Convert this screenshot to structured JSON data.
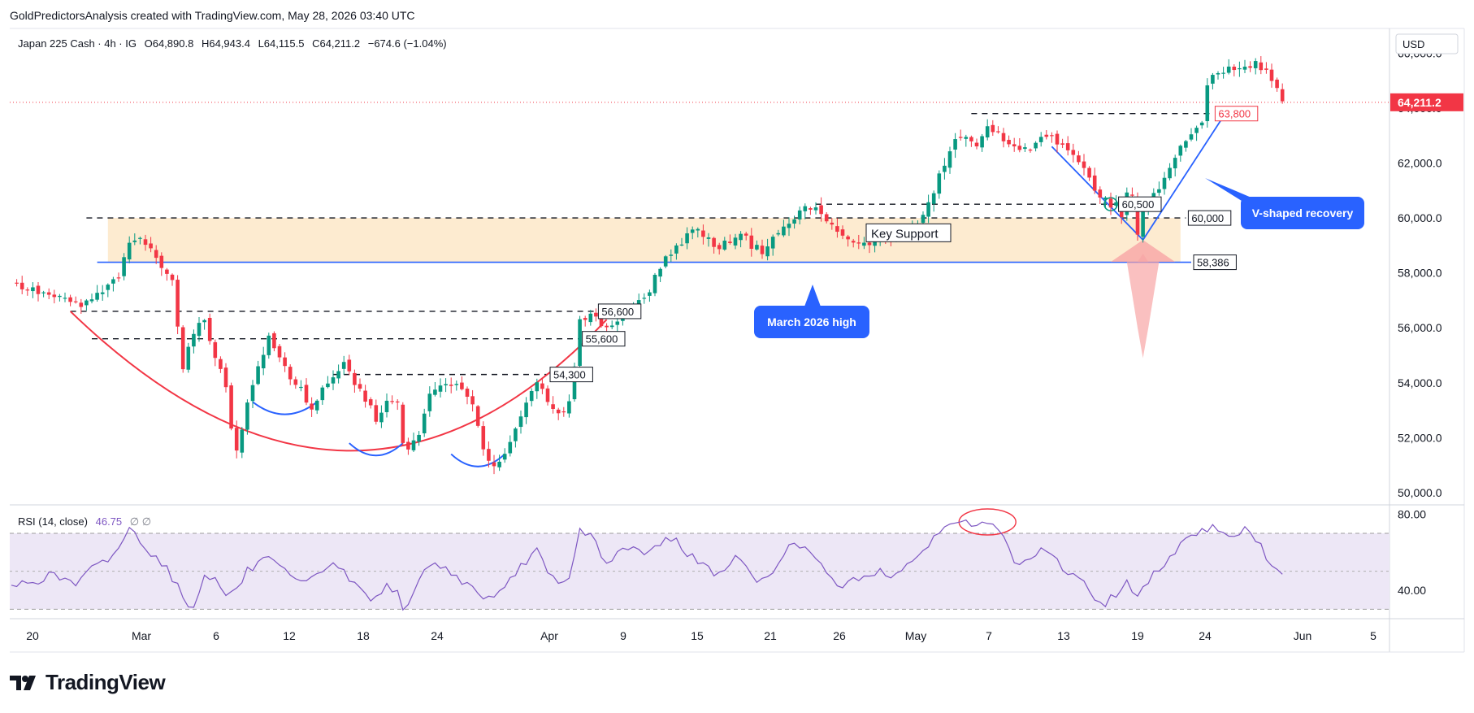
{
  "credit": "GoldPredictorsAnalysis created with TradingView.com, May 28, 2026 03:40 UTC",
  "brand": "TradingView",
  "legend": {
    "symbol": "Japan 225 Cash · 4h · IG",
    "open": "O64,890.8",
    "high": "H64,943.4",
    "low": "L64,115.5",
    "close": "C64,211.2",
    "change": "−674.6 (−1.04%)"
  },
  "currency": "USD",
  "rsi_label": "RSI (14, close)",
  "rsi_value": "46.75",
  "rsi_extra": "∅ ∅",
  "colors": {
    "up": "#089981",
    "down": "#f23645",
    "blue": "#2962ff",
    "red": "#f23645",
    "support_fill": "#fde8c8",
    "rsi_line": "#7e57c2",
    "rsi_band": "#ede7f6"
  },
  "chart_data": {
    "type": "candlestick",
    "ylim": [
      49700,
      66900
    ],
    "price_ticks": [
      "66,000.0",
      "64,000.0",
      "62,000.0",
      "60,000.0",
      "58,000.0",
      "56,000.0",
      "54,000.0",
      "52,000.0",
      "50,000.0"
    ],
    "last_price": "64,211.2",
    "x_labels": [
      "20",
      "Mar",
      "6",
      "12",
      "18",
      "24",
      "Apr",
      "9",
      "15",
      "21",
      "26",
      "May",
      "7",
      "13",
      "19",
      "24",
      "Jun",
      "5"
    ],
    "rsi_ticks": [
      "80.00",
      "40.00"
    ],
    "rsi_ylim": [
      25,
      85
    ],
    "path": [
      [
        0,
        57600
      ],
      [
        5,
        57300
      ],
      [
        10,
        57000
      ],
      [
        13,
        56800
      ],
      [
        17,
        57300
      ],
      [
        20,
        57900
      ],
      [
        22,
        59000
      ],
      [
        24,
        59300
      ],
      [
        26,
        58800
      ],
      [
        28,
        58300
      ],
      [
        30,
        57800
      ],
      [
        31,
        56000
      ],
      [
        32,
        54600
      ],
      [
        34,
        55800
      ],
      [
        36,
        56300
      ],
      [
        38,
        55000
      ],
      [
        40,
        53800
      ],
      [
        41,
        52400
      ],
      [
        42,
        51600
      ],
      [
        44,
        53200
      ],
      [
        46,
        54600
      ],
      [
        48,
        55600
      ],
      [
        50,
        54900
      ],
      [
        52,
        54200
      ],
      [
        54,
        53800
      ],
      [
        55,
        53300
      ],
      [
        56,
        53100
      ],
      [
        58,
        53700
      ],
      [
        60,
        54100
      ],
      [
        62,
        54700
      ],
      [
        64,
        54000
      ],
      [
        66,
        53400
      ],
      [
        68,
        52700
      ],
      [
        70,
        53300
      ],
      [
        72,
        53200
      ],
      [
        73,
        51800
      ],
      [
        74,
        51500
      ],
      [
        76,
        52200
      ],
      [
        78,
        53500
      ],
      [
        80,
        53900
      ],
      [
        82,
        54000
      ],
      [
        84,
        53700
      ],
      [
        86,
        53200
      ],
      [
        87,
        52300
      ],
      [
        88,
        51500
      ],
      [
        90,
        51000
      ],
      [
        92,
        51400
      ],
      [
        94,
        52300
      ],
      [
        96,
        53400
      ],
      [
        98,
        54100
      ],
      [
        100,
        53200
      ],
      [
        102,
        52800
      ],
      [
        104,
        53200
      ],
      [
        106,
        56200
      ],
      [
        108,
        56600
      ],
      [
        110,
        56100
      ],
      [
        112,
        56000
      ],
      [
        114,
        56600
      ],
      [
        116,
        57000
      ],
      [
        118,
        57000
      ],
      [
        120,
        57800
      ],
      [
        122,
        58600
      ],
      [
        124,
        58900
      ],
      [
        126,
        59400
      ],
      [
        128,
        59600
      ],
      [
        130,
        59200
      ],
      [
        132,
        58900
      ],
      [
        134,
        59200
      ],
      [
        136,
        59500
      ],
      [
        138,
        59000
      ],
      [
        140,
        58800
      ],
      [
        142,
        59300
      ],
      [
        144,
        59600
      ],
      [
        146,
        60000
      ],
      [
        148,
        60400
      ],
      [
        150,
        60300
      ],
      [
        152,
        60000
      ],
      [
        154,
        59400
      ],
      [
        156,
        59200
      ],
      [
        158,
        59000
      ],
      [
        160,
        59100
      ],
      [
        162,
        59400
      ],
      [
        164,
        59300
      ],
      [
        166,
        59400
      ],
      [
        168,
        59600
      ],
      [
        170,
        60000
      ],
      [
        172,
        61000
      ],
      [
        174,
        62000
      ],
      [
        176,
        62800
      ],
      [
        178,
        63000
      ],
      [
        180,
        62500
      ],
      [
        182,
        63300
      ],
      [
        184,
        63200
      ],
      [
        186,
        62600
      ],
      [
        188,
        62400
      ],
      [
        190,
        62600
      ],
      [
        192,
        63000
      ],
      [
        194,
        62900
      ],
      [
        196,
        62600
      ],
      [
        198,
        62200
      ],
      [
        200,
        61700
      ],
      [
        202,
        61000
      ],
      [
        204,
        60700
      ],
      [
        205,
        60400
      ],
      [
        206,
        60600
      ],
      [
        207,
        60000
      ],
      [
        208,
        60900
      ],
      [
        209,
        60700
      ],
      [
        210,
        59400
      ],
      [
        211,
        60300
      ],
      [
        213,
        60800
      ],
      [
        215,
        61400
      ],
      [
        217,
        62200
      ],
      [
        219,
        62900
      ],
      [
        221,
        63300
      ],
      [
        222,
        63400
      ],
      [
        223,
        64700
      ],
      [
        224,
        65200
      ],
      [
        226,
        65400
      ],
      [
        228,
        65500
      ],
      [
        230,
        65400
      ],
      [
        232,
        65700
      ],
      [
        233,
        65500
      ],
      [
        235,
        65100
      ],
      [
        236,
        64650
      ],
      [
        237,
        64211
      ]
    ],
    "gaps": [
      [
        104,
        104
      ],
      [
        236,
        236
      ]
    ],
    "levels": [
      {
        "label": "63,800",
        "value": 63800,
        "style": "dashed"
      },
      {
        "label": "60,500",
        "value": 60500,
        "style": "dashed"
      },
      {
        "label": "60,000",
        "value": 60000,
        "style": "dashed"
      },
      {
        "label": "58,386",
        "value": 58386,
        "style": "solid"
      },
      {
        "label": "56,600",
        "value": 56600,
        "style": "dashed"
      },
      {
        "label": "55,600",
        "value": 55600,
        "style": "dashed"
      },
      {
        "label": "54,300",
        "value": 54300,
        "style": "dashed"
      }
    ],
    "zone": {
      "label": "Key Support",
      "from": 58386,
      "to": 60000
    },
    "annotations": {
      "march_high": "March 2026 high",
      "v_recovery": "V-shaped recovery"
    },
    "rsi": [
      [
        0,
        42
      ],
      [
        4,
        45
      ],
      [
        8,
        48
      ],
      [
        12,
        43
      ],
      [
        15,
        51
      ],
      [
        18,
        56
      ],
      [
        20,
        63
      ],
      [
        22,
        72
      ],
      [
        24,
        67
      ],
      [
        26,
        60
      ],
      [
        28,
        55
      ],
      [
        30,
        47
      ],
      [
        32,
        36
      ],
      [
        34,
        30
      ],
      [
        36,
        50
      ],
      [
        38,
        45
      ],
      [
        40,
        38
      ],
      [
        42,
        40
      ],
      [
        44,
        50
      ],
      [
        46,
        54
      ],
      [
        48,
        56
      ],
      [
        50,
        51
      ],
      [
        52,
        47
      ],
      [
        54,
        43
      ],
      [
        56,
        45
      ],
      [
        58,
        51
      ],
      [
        60,
        55
      ],
      [
        62,
        49
      ],
      [
        64,
        43
      ],
      [
        66,
        38
      ],
      [
        68,
        35
      ],
      [
        70,
        43
      ],
      [
        72,
        40
      ],
      [
        73,
        32
      ],
      [
        74,
        30
      ],
      [
        76,
        44
      ],
      [
        78,
        55
      ],
      [
        80,
        52
      ],
      [
        82,
        50
      ],
      [
        84,
        45
      ],
      [
        86,
        41
      ],
      [
        88,
        37
      ],
      [
        90,
        35
      ],
      [
        92,
        40
      ],
      [
        94,
        49
      ],
      [
        96,
        56
      ],
      [
        98,
        61
      ],
      [
        100,
        48
      ],
      [
        102,
        43
      ],
      [
        104,
        45
      ],
      [
        106,
        72
      ],
      [
        108,
        70
      ],
      [
        110,
        58
      ],
      [
        112,
        55
      ],
      [
        114,
        61
      ],
      [
        116,
        62
      ],
      [
        118,
        58
      ],
      [
        120,
        63
      ],
      [
        122,
        68
      ],
      [
        124,
        66
      ],
      [
        126,
        60
      ],
      [
        128,
        55
      ],
      [
        130,
        51
      ],
      [
        132,
        49
      ],
      [
        134,
        55
      ],
      [
        136,
        57
      ],
      [
        138,
        47
      ],
      [
        140,
        44
      ],
      [
        142,
        51
      ],
      [
        144,
        58
      ],
      [
        146,
        67
      ],
      [
        148,
        62
      ],
      [
        150,
        55
      ],
      [
        152,
        50
      ],
      [
        154,
        44
      ],
      [
        156,
        43
      ],
      [
        158,
        46
      ],
      [
        160,
        48
      ],
      [
        162,
        52
      ],
      [
        164,
        47
      ],
      [
        166,
        48
      ],
      [
        168,
        55
      ],
      [
        170,
        62
      ],
      [
        172,
        68
      ],
      [
        174,
        72
      ],
      [
        176,
        76
      ],
      [
        178,
        78
      ],
      [
        180,
        72
      ],
      [
        182,
        77
      ],
      [
        184,
        72
      ],
      [
        186,
        60
      ],
      [
        188,
        52
      ],
      [
        190,
        55
      ],
      [
        192,
        61
      ],
      [
        194,
        58
      ],
      [
        196,
        52
      ],
      [
        198,
        48
      ],
      [
        200,
        43
      ],
      [
        202,
        36
      ],
      [
        204,
        33
      ],
      [
        206,
        38
      ],
      [
        208,
        45
      ],
      [
        210,
        36
      ],
      [
        212,
        44
      ],
      [
        214,
        52
      ],
      [
        216,
        58
      ],
      [
        218,
        65
      ],
      [
        220,
        70
      ],
      [
        222,
        71
      ],
      [
        224,
        74
      ],
      [
        226,
        71
      ],
      [
        228,
        69
      ],
      [
        230,
        72
      ],
      [
        232,
        67
      ],
      [
        234,
        58
      ],
      [
        236,
        50
      ],
      [
        237,
        46.75
      ]
    ]
  }
}
